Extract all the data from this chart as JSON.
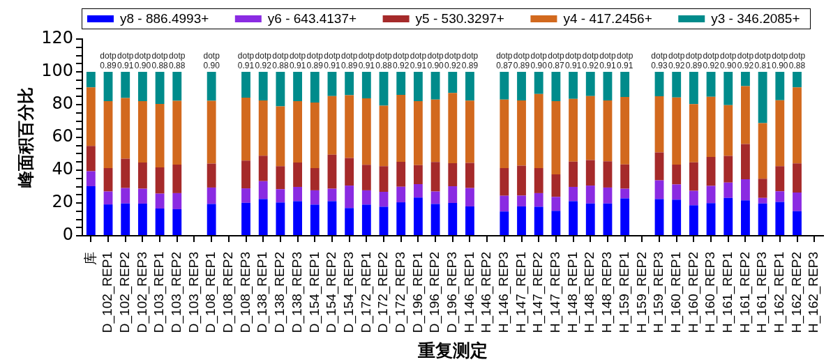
{
  "chart_data": {
    "type": "bar",
    "stacked": true,
    "xlabel": "重复测定",
    "ylabel": "峰面积百分比",
    "legend": "top",
    "categories": [
      "库",
      "D_102_REP1",
      "D_102_REP2",
      "D_102_REP3",
      "D_103_REP1",
      "D_103_REP2",
      "D_103_REP3",
      "D_108_REP1",
      "D_108_REP2",
      "D_108_REP3",
      "D_138_REP1",
      "D_138_REP2",
      "D_138_REP3",
      "D_154_REP1",
      "D_154_REP2",
      "D_154_REP3",
      "D_172_REP1",
      "D_172_REP2",
      "D_172_REP3",
      "D_196_REP1",
      "D_196_REP2",
      "D_196_REP3",
      "H_146_REP1",
      "H_146_REP2",
      "H_146_REP3",
      "H_147_REP1",
      "H_147_REP2",
      "H_147_REP3",
      "H_148_REP1",
      "H_148_REP2",
      "H_148_REP3",
      "H_159_REP1",
      "H_159_REP2",
      "H_159_REP3",
      "H_160_REP1",
      "H_160_REP2",
      "H_160_REP3",
      "H_161_REP1",
      "H_161_REP2",
      "H_161_REP3",
      "H_162_REP1",
      "H_162_REP2",
      "H_162_REP3"
    ],
    "series": [
      {
        "name": "y8 - 886.4993+",
        "color": "#0000ff",
        "values": [
          30.2,
          19.1,
          19.7,
          19.6,
          16.6,
          16.2,
          null,
          19.4,
          null,
          20.1,
          22.4,
          20.3,
          21.1,
          19.0,
          21.1,
          16.9,
          19.0,
          17.7,
          20.4,
          23.3,
          19.4,
          20.0,
          17.9,
          null,
          14.8,
          17.9,
          17.7,
          15.2,
          21.1,
          19.7,
          19.7,
          22.8,
          null,
          22.4,
          22.0,
          18.6,
          19.9,
          23.1,
          21.6,
          19.7,
          20.6,
          15.0,
          null
        ]
      },
      {
        "name": "y6 - 643.4137+",
        "color": "#8a2be2",
        "values": [
          9.2,
          7.9,
          9.4,
          9.1,
          9.1,
          9.8,
          null,
          10.0,
          null,
          8.8,
          10.9,
          8.1,
          8.7,
          8.7,
          7.6,
          13.7,
          8.7,
          9.1,
          9.5,
          8.2,
          7.6,
          10.2,
          11.2,
          null,
          9.6,
          6.6,
          8.3,
          8.5,
          8.7,
          10.9,
          9.7,
          5.9,
          null,
          11.4,
          9.3,
          8.8,
          10.5,
          9.4,
          12.9,
          3.4,
          6.5,
          11.4,
          null
        ]
      },
      {
        "name": "y5 - 530.3297+",
        "color": "#a52a2a",
        "values": [
          15.4,
          14.3,
          17.9,
          16.0,
          16.0,
          17.4,
          null,
          14.6,
          null,
          16.9,
          15.5,
          14.0,
          14.9,
          13.6,
          20.8,
          16.9,
          15.6,
          15.6,
          15.2,
          11.6,
          18.0,
          14.1,
          15.4,
          null,
          16.9,
          18.3,
          15.3,
          13.7,
          15.4,
          15.6,
          16.0,
          14.8,
          null,
          17.1,
          12.1,
          17.4,
          17.7,
          16.2,
          21.5,
          11.7,
          15.3,
          17.7,
          null
        ]
      },
      {
        "name": "y4 - 417.2456+",
        "color": "#d2691e",
        "values": [
          35.7,
          40.8,
          37.0,
          37.4,
          38.7,
          38.9,
          null,
          38.3,
          null,
          38.5,
          33.8,
          36.5,
          37.4,
          40.0,
          35.7,
          38.2,
          40.5,
          37.0,
          40.9,
          39.0,
          38.1,
          42.8,
          37.9,
          null,
          41.8,
          39.8,
          45.2,
          44.7,
          38.3,
          39.0,
          37.2,
          41.2,
          null,
          34.2,
          41.0,
          35.5,
          36.7,
          31.0,
          35.3,
          33.9,
          40.3,
          46.4,
          null
        ]
      },
      {
        "name": "y3 - 346.2085+",
        "color": "#008b8b",
        "values": [
          9.5,
          17.9,
          16.0,
          17.9,
          19.6,
          17.7,
          null,
          17.7,
          null,
          15.7,
          17.4,
          21.1,
          17.9,
          18.7,
          14.8,
          14.3,
          16.2,
          20.6,
          14.0,
          17.9,
          16.9,
          12.9,
          17.6,
          null,
          16.9,
          17.4,
          13.5,
          17.9,
          16.5,
          14.8,
          17.4,
          15.3,
          null,
          14.9,
          15.6,
          19.7,
          15.2,
          20.3,
          8.7,
          31.3,
          17.3,
          9.5,
          null
        ]
      }
    ],
    "ylim": [
      0,
      120
    ],
    "yticks": [
      0,
      {
        "value": 5,
        "label": null
      },
      {
        "value": 10,
        "label": null
      },
      {
        "value": 15,
        "label": null
      },
      20,
      {
        "value": 25,
        "label": null
      },
      {
        "value": 30,
        "label": null
      },
      {
        "value": 35,
        "label": null
      },
      40,
      {
        "value": 45,
        "label": null
      },
      {
        "value": 50,
        "label": null
      },
      {
        "value": 55,
        "label": null
      },
      60,
      {
        "value": 65,
        "label": null
      },
      {
        "value": 70,
        "label": null
      },
      {
        "value": 75,
        "label": null
      },
      80,
      {
        "value": 85,
        "label": null
      },
      {
        "value": 90,
        "label": null
      },
      {
        "value": 95,
        "label": null
      },
      100,
      {
        "value": 105,
        "label": null
      },
      {
        "value": 110,
        "label": null
      },
      {
        "value": 115,
        "label": null
      },
      120
    ],
    "annotations": [
      {
        "text": "dotp\n0.89",
        "x": "D_102_REP1",
        "y": 100
      },
      {
        "text": "dotp\n0.91",
        "x": "D_102_REP2",
        "y": 100
      },
      {
        "text": "dotp\n0.90",
        "x": "D_102_REP3",
        "y": 100
      },
      {
        "text": "dotp\n0.88",
        "x": "D_103_REP1",
        "y": 100
      },
      {
        "text": "dotp\n0.88",
        "x": "D_103_REP2",
        "y": 100
      },
      {
        "text": "dotp\n0.90",
        "x": "D_108_REP1",
        "y": 100
      },
      {
        "text": "dotp\n0.91",
        "x": "D_108_REP3",
        "y": 100
      },
      {
        "text": "dotp\n0.92",
        "x": "D_138_REP1",
        "y": 100
      },
      {
        "text": "dotp\n0.88",
        "x": "D_138_REP2",
        "y": 100
      },
      {
        "text": "dotp\n0.91",
        "x": "D_138_REP3",
        "y": 100
      },
      {
        "text": "dotp\n0.89",
        "x": "D_154_REP1",
        "y": 100
      },
      {
        "text": "dotp\n0.91",
        "x": "D_154_REP2",
        "y": 100
      },
      {
        "text": "dotp\n0.89",
        "x": "D_154_REP3",
        "y": 100
      },
      {
        "text": "dotp\n0.91",
        "x": "D_172_REP1",
        "y": 100
      },
      {
        "text": "dotp\n0.88",
        "x": "D_172_REP2",
        "y": 100
      },
      {
        "text": "dotp\n0.92",
        "x": "D_172_REP3",
        "y": 100
      },
      {
        "text": "dotp\n0.91",
        "x": "D_196_REP1",
        "y": 100
      },
      {
        "text": "dotp\n0.90",
        "x": "D_196_REP2",
        "y": 100
      },
      {
        "text": "dotp\n0.92",
        "x": "D_196_REP3",
        "y": 100
      },
      {
        "text": "dotp\n0.89",
        "x": "H_146_REP1",
        "y": 100
      },
      {
        "text": "dotp\n0.87",
        "x": "H_146_REP3",
        "y": 100
      },
      {
        "text": "dotp\n0.89",
        "x": "H_147_REP1",
        "y": 100
      },
      {
        "text": "dotp\n0.90",
        "x": "H_147_REP2",
        "y": 100
      },
      {
        "text": "dotp\n0.87",
        "x": "H_147_REP3",
        "y": 100
      },
      {
        "text": "dotp\n0.91",
        "x": "H_148_REP1",
        "y": 100
      },
      {
        "text": "dotp\n0.92",
        "x": "H_148_REP2",
        "y": 100
      },
      {
        "text": "dotp\n0.91",
        "x": "H_148_REP3",
        "y": 100
      },
      {
        "text": "dotp\n0.91",
        "x": "H_159_REP1",
        "y": 100
      },
      {
        "text": "dotp\n0.93",
        "x": "H_159_REP3",
        "y": 100
      },
      {
        "text": "dotp\n0.92",
        "x": "H_160_REP1",
        "y": 100
      },
      {
        "text": "dotp\n0.89",
        "x": "H_160_REP2",
        "y": 100
      },
      {
        "text": "dotp\n0.92",
        "x": "H_160_REP3",
        "y": 100
      },
      {
        "text": "dotp\n0.90",
        "x": "H_161_REP1",
        "y": 100
      },
      {
        "text": "dotp\n0.92",
        "x": "H_161_REP2",
        "y": 100
      },
      {
        "text": "dotp\n0.81",
        "x": "H_161_REP3",
        "y": 100
      },
      {
        "text": "dotp\n0.90",
        "x": "H_162_REP1",
        "y": 100
      },
      {
        "text": "dotp\n0.88",
        "x": "H_162_REP2",
        "y": 100
      }
    ]
  }
}
